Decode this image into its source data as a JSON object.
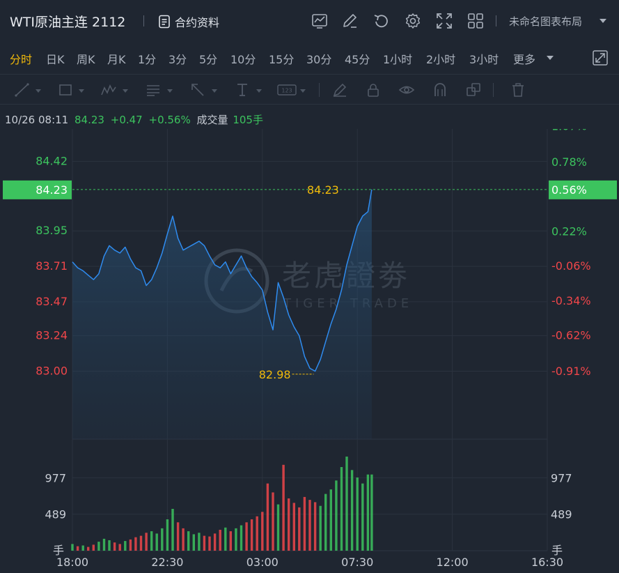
{
  "header": {
    "title": "WTI原油主连 2112",
    "contract_info_label": "合约资料",
    "layout_name": "未命名图表布局",
    "icons": [
      "chart-type-icon",
      "edit-icon",
      "undo-icon",
      "settings-icon",
      "fullscreen-expand-icon",
      "grid-layout-icon",
      "document-icon"
    ]
  },
  "tabs": [
    {
      "label": "分时",
      "active": true
    },
    {
      "label": "日K"
    },
    {
      "label": "周K"
    },
    {
      "label": "月K"
    },
    {
      "label": "1分"
    },
    {
      "label": "3分"
    },
    {
      "label": "5分"
    },
    {
      "label": "10分"
    },
    {
      "label": "15分"
    },
    {
      "label": "30分"
    },
    {
      "label": "45分"
    },
    {
      "label": "1小时"
    },
    {
      "label": "2小时"
    },
    {
      "label": "3小时"
    },
    {
      "label": "更多"
    }
  ],
  "toolbar": {
    "icons": [
      "line-tool-icon",
      "rectangle-tool-icon",
      "wave-tool-icon",
      "fibonacci-tool-icon",
      "arrow-tool-icon",
      "text-tool-icon",
      "price-label-tool-icon",
      "brush-tool-icon",
      "lock-icon",
      "eye-icon",
      "magnet-icon",
      "layers-icon",
      "trash-icon"
    ],
    "price_label_text": "123"
  },
  "info": {
    "datetime": "10/26 08:11",
    "price": "84.23",
    "change": "+0.47",
    "change_pct": "+0.56%",
    "volume_label": "成交量",
    "volume_value": "105手"
  },
  "colors": {
    "background": "#1f2631",
    "up": "#3cc35e",
    "down": "#f0464a",
    "line": "#2f8cf0",
    "accent": "#f0b90b",
    "current_price_badge": "#3cc35e"
  },
  "chart_data": {
    "type": "line",
    "price": {
      "base_price": 83.76,
      "ylim": [
        82.54,
        84.64
      ],
      "y_ticks_left": [
        "84.42",
        "83.95",
        "83.71",
        "83.47",
        "83.24",
        "83.00"
      ],
      "y_ticks_right": [
        "1.07%",
        "0.78%",
        "0.22%",
        "-0.06%",
        "-0.34%",
        "-0.62%",
        "-0.91%"
      ],
      "current": {
        "value": 84.23,
        "label": "84.23",
        "pct_label": "0.56%"
      },
      "low": {
        "value": 82.98,
        "label": "82.98"
      },
      "series": [
        {
          "x": [
            "18:00",
            "18:15",
            "18:30",
            "18:45",
            "19:00",
            "19:15",
            "19:30",
            "19:45",
            "20:00",
            "20:15",
            "20:30",
            "20:45",
            "21:00",
            "21:15",
            "21:30",
            "21:45",
            "22:00",
            "22:15",
            "22:30",
            "22:45",
            "23:00",
            "23:15",
            "23:30",
            "23:45",
            "00:00",
            "00:15",
            "00:30",
            "00:45",
            "01:00",
            "01:15",
            "01:30",
            "01:45",
            "02:00",
            "02:15",
            "02:30",
            "02:45",
            "03:00",
            "03:15",
            "03:30",
            "03:45",
            "04:00",
            "04:15",
            "04:30",
            "04:45",
            "05:00",
            "05:15",
            "05:30",
            "05:45",
            "06:00",
            "06:15",
            "06:30",
            "06:45",
            "07:00",
            "07:15",
            "07:30",
            "07:45",
            "08:00",
            "08:11"
          ],
          "y": [
            83.74,
            83.7,
            83.68,
            83.65,
            83.62,
            83.66,
            83.78,
            83.85,
            83.82,
            83.8,
            83.84,
            83.76,
            83.7,
            83.68,
            83.58,
            83.62,
            83.7,
            83.8,
            83.93,
            84.05,
            83.9,
            83.82,
            83.84,
            83.86,
            83.88,
            83.85,
            83.78,
            83.72,
            83.7,
            83.74,
            83.66,
            83.72,
            83.78,
            83.7,
            83.64,
            83.6,
            83.55,
            83.4,
            83.28,
            83.6,
            83.5,
            83.38,
            83.3,
            83.24,
            83.1,
            83.02,
            83.0,
            83.08,
            83.2,
            83.32,
            83.42,
            83.55,
            83.72,
            83.85,
            83.98,
            84.05,
            84.08,
            84.23
          ]
        }
      ]
    },
    "volume": {
      "y_ticks": [
        "977",
        "489"
      ],
      "unit": "手",
      "ylim": [
        0,
        1400
      ],
      "series": [
        {
          "name": "volume",
          "color_by_direction": true,
          "x": [
            "18:00",
            "18:15",
            "18:30",
            "18:45",
            "19:00",
            "19:15",
            "19:30",
            "19:45",
            "20:00",
            "20:15",
            "20:30",
            "20:45",
            "21:00",
            "21:15",
            "21:30",
            "21:45",
            "22:00",
            "22:15",
            "22:30",
            "22:45",
            "23:00",
            "23:15",
            "23:30",
            "23:45",
            "00:00",
            "00:15",
            "00:30",
            "00:45",
            "01:00",
            "01:15",
            "01:30",
            "01:45",
            "02:00",
            "02:15",
            "02:30",
            "02:45",
            "03:00",
            "03:15",
            "03:30",
            "03:45",
            "04:00",
            "04:15",
            "04:30",
            "04:45",
            "05:00",
            "05:15",
            "05:30",
            "05:45",
            "06:00",
            "06:15",
            "06:30",
            "06:45",
            "07:00",
            "07:15",
            "07:30",
            "07:45",
            "08:00",
            "08:11"
          ],
          "values": [
            90,
            60,
            70,
            50,
            80,
            120,
            160,
            140,
            110,
            90,
            130,
            150,
            180,
            200,
            240,
            260,
            230,
            300,
            420,
            560,
            380,
            300,
            260,
            220,
            240,
            200,
            190,
            230,
            280,
            310,
            260,
            300,
            340,
            380,
            420,
            460,
            520,
            900,
            780,
            620,
            1150,
            700,
            640,
            580,
            720,
            680,
            650,
            600,
            760,
            820,
            940,
            1120,
            1260,
            1080,
            980,
            900,
            1020,
            1020
          ],
          "up": [
            true,
            false,
            true,
            false,
            false,
            true,
            true,
            true,
            false,
            false,
            true,
            false,
            false,
            false,
            false,
            true,
            true,
            true,
            true,
            true,
            false,
            false,
            true,
            true,
            true,
            false,
            false,
            false,
            false,
            true,
            false,
            true,
            true,
            false,
            false,
            false,
            false,
            false,
            false,
            true,
            false,
            false,
            false,
            false,
            false,
            false,
            false,
            true,
            true,
            true,
            true,
            true,
            true,
            true,
            true,
            true,
            true,
            true
          ]
        }
      ]
    },
    "x_axis": {
      "ticks": [
        "18:00",
        "22:30",
        "03:00",
        "07:30",
        "12:00",
        "16:30"
      ]
    },
    "grid": true,
    "watermark": {
      "cn": "老虎證劵",
      "en": "TIGER TRADE"
    }
  }
}
